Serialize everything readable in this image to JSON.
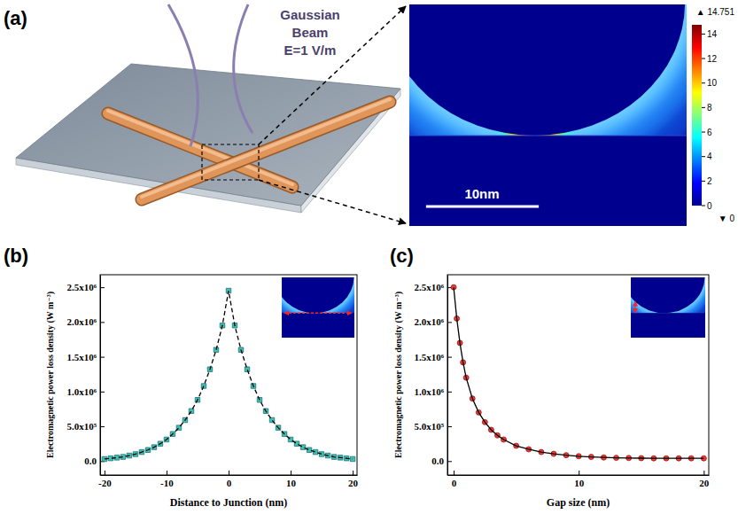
{
  "chart_data": [
    {
      "panel": "(b)",
      "type": "line",
      "x_label": "Distance to Junction (nm)",
      "y_label": "Electromagnetic power loss density (W m⁻³)",
      "x": [
        -20,
        -19,
        -18,
        -17,
        -16,
        -15,
        -14,
        -13,
        -12,
        -11,
        -10,
        -9,
        -8,
        -7,
        -6,
        -5,
        -4,
        -3,
        -2,
        -1,
        0,
        1,
        2,
        3,
        4,
        5,
        6,
        7,
        8,
        9,
        10,
        11,
        12,
        13,
        14,
        15,
        16,
        17,
        18,
        19,
        20
      ],
      "series": [
        {
          "color": "#3cc4b8",
          "marker": "square",
          "line_style": "dashed",
          "values": [
            30000,
            40000,
            50000,
            60000,
            80000,
            100000,
            130000,
            160000,
            200000,
            250000,
            310000,
            390000,
            480000,
            590000,
            720000,
            880000,
            1080000,
            1320000,
            1600000,
            1950000,
            2450000,
            1950000,
            1600000,
            1320000,
            1080000,
            880000,
            720000,
            590000,
            480000,
            390000,
            310000,
            250000,
            200000,
            160000,
            130000,
            100000,
            80000,
            60000,
            50000,
            40000,
            30000
          ]
        }
      ],
      "xlim": [
        -20.7,
        20.7
      ],
      "xticks": [
        -20,
        -10,
        0,
        10,
        20
      ],
      "ylim": [
        -200000,
        2680000
      ],
      "yticks": [
        {
          "value": 0,
          "label": "0.0"
        },
        {
          "value": 500000,
          "label": "5.0x10⁵"
        },
        {
          "value": 1000000,
          "label": "1.0x10⁶"
        },
        {
          "value": 1500000,
          "label": "1.5x10⁶"
        },
        {
          "value": 2000000,
          "label": "2.0x10⁶"
        },
        {
          "value": 2500000,
          "label": "2.5x10⁶"
        }
      ]
    },
    {
      "panel": "(c)",
      "type": "line",
      "x_label": "Gap size (nm)",
      "y_label": "Electromagnetic power loss density (W m⁻³)",
      "x": [
        0,
        0.25,
        0.5,
        0.75,
        1,
        1.5,
        2,
        2.5,
        3,
        3.5,
        4,
        5,
        6,
        7,
        8,
        9,
        10,
        11,
        12,
        13,
        14,
        15,
        16,
        17,
        18,
        19,
        20
      ],
      "series": [
        {
          "color": "#e8403a",
          "marker": "circle",
          "line_style": "solid",
          "values": [
            2500000,
            2050000,
            1700000,
            1420000,
            1200000,
            900000,
            700000,
            560000,
            450000,
            370000,
            310000,
            220000,
            170000,
            130000,
            105000,
            85000,
            70000,
            60000,
            52000,
            47000,
            44000,
            42000,
            40000,
            40000,
            40000,
            40000,
            40000
          ]
        }
      ],
      "xlim": [
        -0.5,
        20.4
      ],
      "xticks": [
        0,
        10,
        20
      ],
      "ylim": [
        -200000,
        2680000
      ],
      "yticks": [
        {
          "value": 0,
          "label": "0.0"
        },
        {
          "value": 500000,
          "label": "5.0x10⁵"
        },
        {
          "value": 1000000,
          "label": "1.0x10⁶"
        },
        {
          "value": 1500000,
          "label": "1.5x10⁶"
        },
        {
          "value": 2000000,
          "label": "2.0x10⁶"
        },
        {
          "value": 2500000,
          "label": "2.5x10⁶"
        }
      ]
    }
  ],
  "panel_a": {
    "panel": "(a)",
    "beam_label": [
      "Gaussian",
      "Beam",
      "E=1 V/m"
    ],
    "field_map": {
      "scale_bar": "10nm",
      "colorbar": {
        "range": [
          0,
          14.751
        ],
        "ticks": [
          0,
          2,
          4,
          6,
          8,
          10,
          12,
          14
        ],
        "max_label": "▲ 14.751",
        "min_label": "▼ 0"
      }
    }
  }
}
